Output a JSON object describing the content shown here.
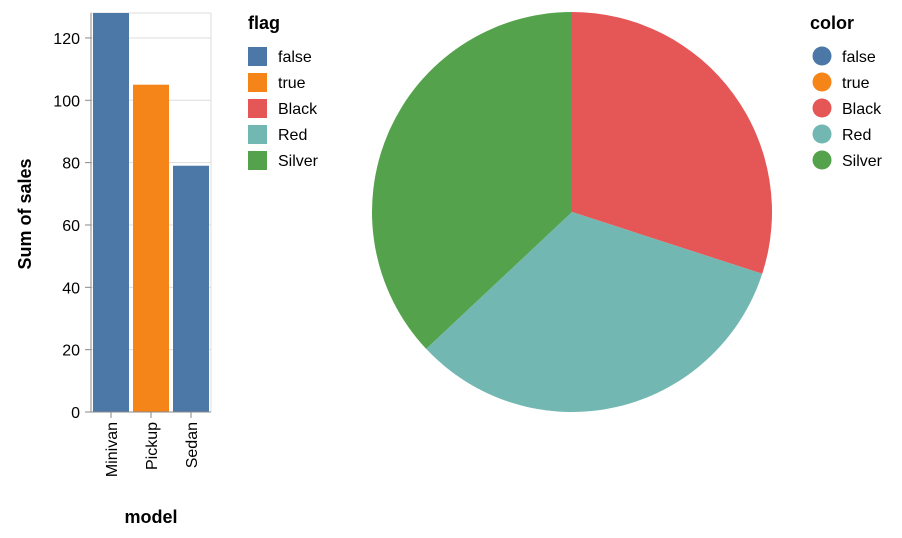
{
  "chart_data": [
    {
      "type": "bar",
      "xlabel": "model",
      "ylabel": "Sum of sales",
      "categories": [
        "Minivan",
        "Pickup",
        "Sedan"
      ],
      "values": [
        128,
        105,
        79
      ],
      "bar_flags": [
        "false",
        "true",
        "false"
      ],
      "ylim": [
        0,
        128
      ],
      "y_ticks": [
        0,
        20,
        40,
        60,
        80,
        100,
        120
      ],
      "grid": true,
      "legend": {
        "title": "flag",
        "position": "right",
        "shape": "square",
        "entries": [
          {
            "label": "false",
            "color": "#4c78a8"
          },
          {
            "label": "true",
            "color": "#f58518"
          },
          {
            "label": "Black",
            "color": "#e45756"
          },
          {
            "label": "Red",
            "color": "#72b7b2"
          },
          {
            "label": "Silver",
            "color": "#54a24b"
          }
        ]
      }
    },
    {
      "type": "pie",
      "slices": [
        {
          "label": "Black",
          "value": 30,
          "color": "#e45756"
        },
        {
          "label": "Red",
          "value": 33,
          "color": "#72b7b2"
        },
        {
          "label": "Silver",
          "value": 37,
          "color": "#54a24b"
        }
      ],
      "legend": {
        "title": "color",
        "position": "right",
        "shape": "circle",
        "entries": [
          {
            "label": "false",
            "color": "#4c78a8"
          },
          {
            "label": "true",
            "color": "#f58518"
          },
          {
            "label": "Black",
            "color": "#e45756"
          },
          {
            "label": "Red",
            "color": "#72b7b2"
          },
          {
            "label": "Silver",
            "color": "#54a24b"
          }
        ]
      }
    }
  ]
}
